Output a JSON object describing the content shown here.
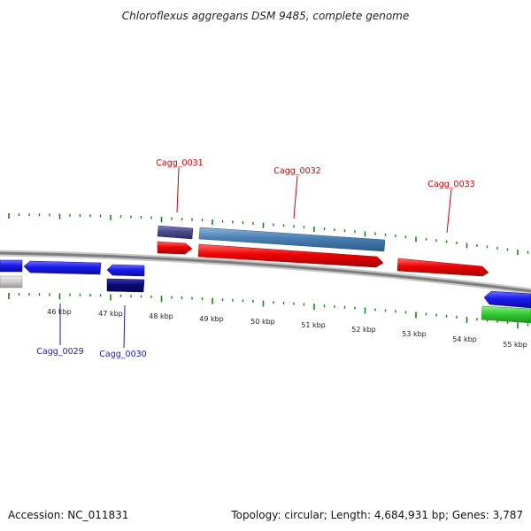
{
  "title": "Chloroflexus aggregans DSM 9485, complete genome",
  "footer": {
    "accession": "Accession: NC_011831",
    "summary": "Topology: circular; Length: 4,684,931 bp; Genes: 3,787"
  },
  "ticks": [
    "46 kbp",
    "47 kbp",
    "48 kbp",
    "49 kbp",
    "50 kbp",
    "51 kbp",
    "52 kbp",
    "53 kbp",
    "54 kbp",
    "55 kbp"
  ],
  "labels": [
    {
      "id": "cagg-0031",
      "text": "Cagg_0031",
      "strand": "forward"
    },
    {
      "id": "cagg-0032",
      "text": "Cagg_0032",
      "strand": "forward"
    },
    {
      "id": "cagg-0033",
      "text": "Cagg_0033",
      "strand": "forward"
    },
    {
      "id": "cagg-0029",
      "text": "Cagg_0029",
      "strand": "reverse"
    },
    {
      "id": "cagg-0030",
      "text": "Cagg_0030",
      "strand": "reverse"
    }
  ],
  "colors": {
    "forward_cds": "#ee0000",
    "reverse_cds": "#1a1aee",
    "forward_label": "#cc0000",
    "reverse_label": "#1a1ab3",
    "gene_steelblue": "#4a7fb5",
    "gene_purple": "#4b4b8c",
    "gene_navy": "#0a0a78",
    "gene_green": "#33cc33",
    "gene_grey": "#cccccc",
    "backbone": "#888888",
    "ticks_gc": "#118811"
  }
}
